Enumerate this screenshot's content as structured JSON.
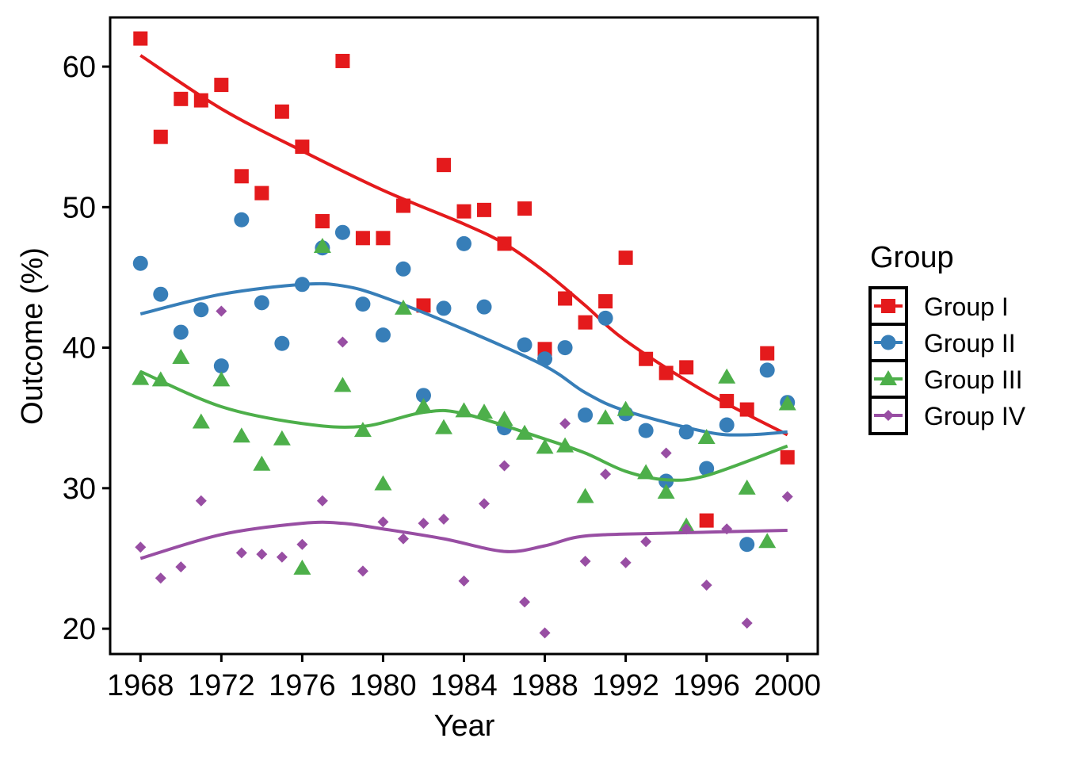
{
  "chart_data": {
    "type": "scatter",
    "title": "",
    "xlabel": "Year",
    "ylabel": "Outcome (%)",
    "xlim": [
      1966.5,
      2001.5
    ],
    "ylim": [
      18.2,
      63.5
    ],
    "x_ticks": [
      1968,
      1972,
      1976,
      1980,
      1984,
      1988,
      1992,
      1996,
      2000
    ],
    "y_ticks": [
      20,
      30,
      40,
      50,
      60
    ],
    "grid": false,
    "legend": {
      "title": "Group",
      "position": "right"
    },
    "x": [
      1968,
      1969,
      1970,
      1971,
      1972,
      1973,
      1974,
      1975,
      1976,
      1977,
      1978,
      1979,
      1980,
      1981,
      1982,
      1983,
      1984,
      1985,
      1986,
      1987,
      1988,
      1989,
      1990,
      1991,
      1992,
      1993,
      1994,
      1995,
      1996,
      1997,
      1998,
      1999,
      2000
    ],
    "series": [
      {
        "name": "Group I",
        "color": "#e41a1c",
        "marker": "square",
        "values": [
          62.0,
          55.0,
          57.7,
          57.6,
          58.7,
          52.2,
          51.0,
          56.8,
          54.3,
          49.0,
          60.4,
          47.8,
          47.8,
          50.1,
          43.0,
          53.0,
          49.7,
          49.8,
          47.4,
          49.9,
          39.9,
          43.5,
          41.8,
          43.3,
          46.4,
          39.2,
          38.2,
          38.6,
          27.7,
          36.2,
          35.6,
          39.6,
          32.2
        ],
        "smooth": {
          "x": [
            1968,
            1972,
            1976,
            1980,
            1984,
            1986,
            1988,
            1990,
            1992,
            1996,
            2000
          ],
          "y": [
            60.8,
            57.0,
            54.0,
            51.2,
            48.8,
            47.4,
            45.4,
            43.0,
            40.5,
            36.8,
            33.8
          ]
        }
      },
      {
        "name": "Group II",
        "color": "#377eb8",
        "marker": "circle",
        "values": [
          46.0,
          43.8,
          41.1,
          42.7,
          38.7,
          49.1,
          43.2,
          40.3,
          44.5,
          47.1,
          48.2,
          43.1,
          40.9,
          45.6,
          36.6,
          42.8,
          47.4,
          42.9,
          34.3,
          40.2,
          39.2,
          40.0,
          35.2,
          42.1,
          35.3,
          34.1,
          30.5,
          34.0,
          31.4,
          34.5,
          26.0,
          38.4,
          36.1
        ],
        "smooth": {
          "x": [
            1968,
            1972,
            1976,
            1978,
            1980,
            1984,
            1988,
            1990,
            1992,
            1996,
            1998,
            2000
          ],
          "y": [
            42.4,
            43.8,
            44.5,
            44.4,
            43.6,
            41.3,
            38.7,
            36.8,
            35.5,
            34.0,
            33.8,
            34.0
          ]
        }
      },
      {
        "name": "Group III",
        "color": "#4daf4a",
        "marker": "triangle",
        "values": [
          37.8,
          37.7,
          39.3,
          34.7,
          37.7,
          33.7,
          31.7,
          33.5,
          24.3,
          47.2,
          37.3,
          34.1,
          30.3,
          42.8,
          35.8,
          34.3,
          35.5,
          35.4,
          34.9,
          33.9,
          32.9,
          33.0,
          29.4,
          35.0,
          35.6,
          31.1,
          29.7,
          27.3,
          33.6,
          37.9,
          30.0,
          26.2,
          36.0
        ],
        "smooth": {
          "x": [
            1968,
            1972,
            1976,
            1979,
            1982,
            1984,
            1988,
            1990,
            1992,
            1994,
            1996,
            2000
          ],
          "y": [
            38.3,
            35.8,
            34.6,
            34.4,
            35.4,
            35.3,
            33.5,
            32.5,
            31.2,
            30.6,
            30.9,
            33.0
          ]
        }
      },
      {
        "name": "Group IV",
        "color": "#984ea3",
        "marker": "diamond",
        "values": [
          25.8,
          23.6,
          24.4,
          29.1,
          42.6,
          25.4,
          25.3,
          25.1,
          26.0,
          29.1,
          40.4,
          24.1,
          27.6,
          26.4,
          27.5,
          27.8,
          23.4,
          28.9,
          31.6,
          21.9,
          19.7,
          34.6,
          24.8,
          31.0,
          24.7,
          26.2,
          32.5,
          27.1,
          23.1,
          27.1,
          20.4,
          null,
          29.4
        ],
        "smooth": {
          "x": [
            1968,
            1972,
            1976,
            1978,
            1980,
            1983,
            1986,
            1988,
            1990,
            1994,
            2000
          ],
          "y": [
            25.0,
            26.7,
            27.5,
            27.5,
            27.1,
            26.4,
            25.5,
            25.9,
            26.6,
            26.8,
            27.0
          ]
        }
      }
    ]
  }
}
